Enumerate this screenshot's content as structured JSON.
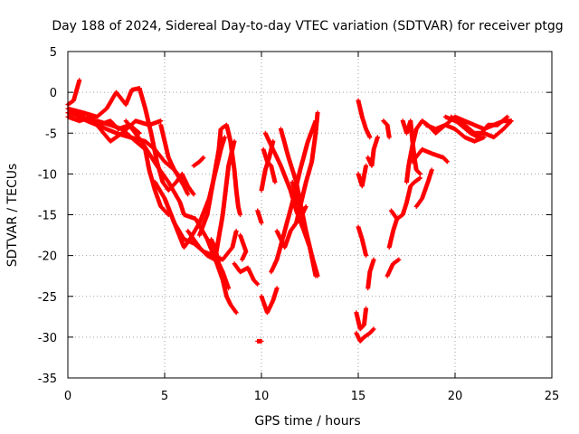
{
  "chart_data": {
    "type": "scatter",
    "title": "Day 188 of 2024, Sidereal Day-to-day VTEC variation (SDTVAR) for receiver ptgg",
    "xlabel": "GPS time / hours",
    "ylabel": "SDTVAR / TECUs",
    "xlim": [
      0,
      25
    ],
    "ylim": [
      -35,
      5
    ],
    "xticks": [
      0,
      5,
      10,
      15,
      20,
      25
    ],
    "yticks": [
      5,
      0,
      -5,
      -10,
      -15,
      -20,
      -25,
      -30,
      -35
    ],
    "grid": true,
    "marker": "+",
    "marker_color": "#ff0000",
    "tracks": [
      [
        [
          0.0,
          -1.5
        ],
        [
          0.3,
          -1.0
        ],
        [
          0.6,
          1.5
        ]
      ],
      [
        [
          0.0,
          -2.5
        ],
        [
          0.8,
          -3.0
        ],
        [
          1.5,
          -4.0
        ],
        [
          2.2,
          -6.0
        ],
        [
          2.8,
          -5.0
        ],
        [
          3.5,
          -3.5
        ],
        [
          4.2,
          -4.0
        ],
        [
          4.8,
          -3.5
        ]
      ],
      [
        [
          0.5,
          -3.0
        ],
        [
          1.5,
          -4.0
        ],
        [
          2.5,
          -5.0
        ],
        [
          3.2,
          -5.5
        ],
        [
          4.0,
          -6.0
        ],
        [
          4.5,
          -7.0
        ],
        [
          5.0,
          -8.5
        ],
        [
          5.5,
          -9.5
        ],
        [
          6.0,
          -11.0
        ]
      ],
      [
        [
          0.0,
          -3.0
        ],
        [
          0.6,
          -3.5
        ],
        [
          1.2,
          -3.0
        ],
        [
          1.6,
          -4.0
        ],
        [
          2.2,
          -3.5
        ],
        [
          2.6,
          -4.5
        ],
        [
          3.2,
          -4.0
        ],
        [
          3.7,
          -5.0
        ]
      ],
      [
        [
          0.0,
          -2.0
        ],
        [
          0.8,
          -2.5
        ],
        [
          1.5,
          -3.0
        ],
        [
          2.0,
          -2.0
        ],
        [
          2.5,
          0.0
        ],
        [
          3.0,
          -1.5
        ],
        [
          3.3,
          0.3
        ],
        [
          3.7,
          0.5
        ],
        [
          4.0,
          -2.0
        ],
        [
          4.3,
          -5.0
        ],
        [
          4.6,
          -8.5
        ],
        [
          4.9,
          -11.0
        ],
        [
          5.2,
          -12.0
        ],
        [
          5.6,
          -11.0
        ],
        [
          5.9,
          -10.0
        ],
        [
          6.2,
          -11.5
        ],
        [
          6.5,
          -12.5
        ]
      ],
      [
        [
          1.5,
          -3.5
        ],
        [
          2.2,
          -4.0
        ],
        [
          2.8,
          -4.5
        ],
        [
          3.5,
          -6.0
        ],
        [
          4.0,
          -7.0
        ],
        [
          4.2,
          -9.5
        ],
        [
          4.5,
          -12.0
        ],
        [
          4.8,
          -14.0
        ],
        [
          5.2,
          -15.0
        ]
      ],
      [
        [
          3.0,
          -3.5
        ],
        [
          3.8,
          -6.0
        ],
        [
          4.6,
          -9.0
        ],
        [
          5.2,
          -11.0
        ],
        [
          5.8,
          -13.5
        ],
        [
          6.0,
          -15.0
        ],
        [
          6.6,
          -15.5
        ],
        [
          7.2,
          -18.0
        ],
        [
          7.7,
          -21.0
        ],
        [
          8.0,
          -23.0
        ],
        [
          8.2,
          -25.0
        ],
        [
          8.4,
          -26.0
        ],
        [
          8.7,
          -27.0
        ]
      ],
      [
        [
          4.5,
          -11.0
        ],
        [
          5.0,
          -13.0
        ],
        [
          5.5,
          -16.0
        ],
        [
          6.0,
          -18.0
        ],
        [
          6.5,
          -18.5
        ],
        [
          7.0,
          -19.5
        ],
        [
          7.5,
          -20.0
        ],
        [
          8.0,
          -20.5
        ],
        [
          8.5,
          -19.0
        ],
        [
          8.7,
          -17.0
        ]
      ],
      [
        [
          4.8,
          -4.0
        ],
        [
          5.0,
          -6.0
        ],
        [
          5.2,
          -8.0
        ],
        [
          5.5,
          -9.5
        ],
        [
          6.0,
          -11.5
        ],
        [
          6.2,
          -12.5
        ]
      ],
      [
        [
          5.0,
          -13.0
        ],
        [
          5.5,
          -16.0
        ],
        [
          6.0,
          -19.0
        ],
        [
          6.3,
          -18.0
        ],
        [
          6.8,
          -16.0
        ],
        [
          7.3,
          -13.0
        ],
        [
          7.6,
          -10.0
        ],
        [
          7.9,
          -7.0
        ],
        [
          8.1,
          -5.5
        ]
      ],
      [
        [
          6.2,
          -17.0
        ],
        [
          6.8,
          -19.0
        ],
        [
          7.2,
          -20.0
        ],
        [
          7.6,
          -20.5
        ],
        [
          8.0,
          -15.0
        ],
        [
          8.3,
          -9.0
        ],
        [
          8.6,
          -6.0
        ]
      ],
      [
        [
          6.5,
          -9.0
        ],
        [
          6.8,
          -8.5
        ],
        [
          7.0,
          -8.0
        ]
      ],
      [
        [
          6.8,
          -17.5
        ],
        [
          7.2,
          -15.0
        ],
        [
          7.5,
          -11.0
        ],
        [
          7.8,
          -7.0
        ],
        [
          7.9,
          -4.5
        ],
        [
          8.2,
          -4.0
        ],
        [
          8.4,
          -6.0
        ],
        [
          8.6,
          -9.5
        ],
        [
          8.7,
          -12.0
        ],
        [
          8.8,
          -14.0
        ],
        [
          8.9,
          -15.0
        ]
      ],
      [
        [
          7.4,
          -18.0
        ],
        [
          7.6,
          -19.0
        ],
        [
          7.8,
          -21.0
        ],
        [
          8.0,
          -22.0
        ],
        [
          8.3,
          -24.0
        ]
      ],
      [
        [
          8.6,
          -21.0
        ],
        [
          8.9,
          -22.0
        ],
        [
          9.3,
          -21.5
        ],
        [
          9.6,
          -23.0
        ],
        [
          9.8,
          -23.5
        ]
      ],
      [
        [
          8.9,
          -17.5
        ],
        [
          9.2,
          -19.5
        ],
        [
          9.0,
          -20.5
        ]
      ],
      [
        [
          9.8,
          -14.5
        ],
        [
          10.0,
          -16.0
        ]
      ],
      [
        [
          9.8,
          -30.5
        ],
        [
          10.0,
          -30.5
        ]
      ],
      [
        [
          10.0,
          -25.0
        ],
        [
          10.3,
          -27.0
        ],
        [
          10.6,
          -25.5
        ],
        [
          10.8,
          -24.0
        ]
      ],
      [
        [
          10.0,
          -12.0
        ],
        [
          10.2,
          -9.5
        ],
        [
          10.4,
          -8.0
        ],
        [
          10.6,
          -6.0
        ]
      ],
      [
        [
          10.1,
          -7.0
        ],
        [
          10.3,
          -8.5
        ],
        [
          10.5,
          -9.0
        ],
        [
          10.7,
          -11.0
        ]
      ],
      [
        [
          10.2,
          -5.0
        ],
        [
          10.6,
          -7.0
        ],
        [
          11.0,
          -9.0
        ],
        [
          11.5,
          -12.0
        ],
        [
          11.8,
          -14.5
        ],
        [
          12.2,
          -17.0
        ],
        [
          12.5,
          -19.0
        ],
        [
          12.8,
          -22.5
        ]
      ],
      [
        [
          10.8,
          -17.0
        ],
        [
          11.2,
          -19.0
        ],
        [
          11.5,
          -17.0
        ],
        [
          11.8,
          -16.0
        ],
        [
          12.0,
          -14.0
        ],
        [
          12.3,
          -11.0
        ],
        [
          12.6,
          -8.5
        ],
        [
          12.8,
          -5.0
        ],
        [
          12.9,
          -2.5
        ]
      ],
      [
        [
          10.5,
          -22.0
        ],
        [
          10.8,
          -20.5
        ],
        [
          11.2,
          -17.0
        ],
        [
          11.6,
          -13.5
        ],
        [
          12.0,
          -9.5
        ],
        [
          12.4,
          -6.0
        ],
        [
          12.8,
          -3.5
        ]
      ],
      [
        [
          11.0,
          -4.5
        ],
        [
          11.4,
          -8.0
        ],
        [
          11.8,
          -11.0
        ],
        [
          12.0,
          -13.5
        ],
        [
          12.3,
          -17.0
        ],
        [
          12.6,
          -20.0
        ],
        [
          12.9,
          -22.5
        ]
      ],
      [
        [
          11.6,
          -11.0
        ],
        [
          11.9,
          -13.5
        ],
        [
          12.1,
          -15.0
        ],
        [
          12.3,
          -14.0
        ]
      ],
      [
        [
          15.0,
          -1.0
        ],
        [
          15.2,
          -3.0
        ],
        [
          15.4,
          -4.5
        ],
        [
          15.6,
          -5.5
        ]
      ],
      [
        [
          15.0,
          -10.0
        ],
        [
          15.2,
          -11.5
        ],
        [
          15.4,
          -9.0
        ]
      ],
      [
        [
          15.0,
          -16.5
        ],
        [
          15.2,
          -18.0
        ],
        [
          15.4,
          -20.0
        ]
      ],
      [
        [
          14.9,
          -27.0
        ],
        [
          15.1,
          -29.0
        ],
        [
          15.3,
          -28.5
        ],
        [
          15.4,
          -26.5
        ]
      ],
      [
        [
          14.9,
          -29.5
        ],
        [
          15.1,
          -30.5
        ],
        [
          15.3,
          -30.0
        ],
        [
          15.6,
          -29.5
        ],
        [
          15.8,
          -29.0
        ]
      ],
      [
        [
          15.5,
          -24.0
        ],
        [
          15.6,
          -22.0
        ],
        [
          15.8,
          -20.5
        ]
      ],
      [
        [
          15.5,
          -8.0
        ],
        [
          15.7,
          -9.0
        ],
        [
          15.8,
          -7.0
        ],
        [
          16.0,
          -5.5
        ]
      ],
      [
        [
          16.3,
          -3.5
        ],
        [
          16.5,
          -4.0
        ],
        [
          16.6,
          -5.5
        ]
      ],
      [
        [
          16.5,
          -22.5
        ],
        [
          16.8,
          -21.0
        ],
        [
          17.1,
          -20.5
        ]
      ],
      [
        [
          16.6,
          -19.0
        ],
        [
          16.8,
          -17.0
        ],
        [
          17.0,
          -15.5
        ]
      ],
      [
        [
          16.7,
          -14.5
        ],
        [
          17.0,
          -15.5
        ],
        [
          17.3,
          -15.0
        ],
        [
          17.5,
          -13.5
        ],
        [
          17.7,
          -11.5
        ],
        [
          17.9,
          -11.0
        ],
        [
          18.2,
          -10.5
        ]
      ],
      [
        [
          17.3,
          -3.5
        ],
        [
          17.5,
          -5.0
        ],
        [
          17.7,
          -3.5
        ],
        [
          17.8,
          -6.0
        ],
        [
          17.9,
          -8.0
        ],
        [
          18.0,
          -9.5
        ],
        [
          18.2,
          -10.0
        ]
      ],
      [
        [
          17.5,
          -11.0
        ],
        [
          17.6,
          -9.0
        ],
        [
          17.8,
          -6.5
        ],
        [
          18.0,
          -4.5
        ],
        [
          18.3,
          -3.5
        ]
      ],
      [
        [
          17.8,
          -8.5
        ],
        [
          18.3,
          -7.0
        ],
        [
          18.8,
          -7.5
        ],
        [
          19.4,
          -8.0
        ],
        [
          19.6,
          -8.5
        ]
      ],
      [
        [
          18.0,
          -14.0
        ],
        [
          18.3,
          -13.0
        ],
        [
          18.6,
          -11.0
        ],
        [
          18.8,
          -9.5
        ]
      ],
      [
        [
          18.3,
          -3.5
        ],
        [
          18.6,
          -4.0
        ],
        [
          19.0,
          -5.0
        ],
        [
          19.5,
          -4.0
        ],
        [
          20.0,
          -4.5
        ],
        [
          20.5,
          -5.5
        ],
        [
          21.0,
          -6.0
        ],
        [
          21.5,
          -5.5
        ]
      ],
      [
        [
          18.5,
          -4.0
        ],
        [
          19.0,
          -4.5
        ],
        [
          19.5,
          -4.0
        ],
        [
          20.0,
          -3.0
        ],
        [
          20.5,
          -3.5
        ],
        [
          21.0,
          -4.0
        ],
        [
          21.5,
          -4.5
        ],
        [
          22.0,
          -4.0
        ],
        [
          22.5,
          -3.5
        ],
        [
          22.9,
          -3.5
        ]
      ],
      [
        [
          19.5,
          -3.0
        ],
        [
          20.0,
          -3.5
        ],
        [
          20.5,
          -4.0
        ],
        [
          21.0,
          -5.0
        ],
        [
          21.5,
          -5.0
        ],
        [
          22.0,
          -5.5
        ],
        [
          22.5,
          -4.5
        ],
        [
          22.9,
          -3.5
        ]
      ],
      [
        [
          19.8,
          -3.0
        ],
        [
          20.3,
          -4.0
        ],
        [
          20.8,
          -5.0
        ],
        [
          21.2,
          -5.5
        ],
        [
          21.7,
          -4.0
        ],
        [
          22.2,
          -4.0
        ],
        [
          22.7,
          -3.0
        ]
      ]
    ]
  }
}
